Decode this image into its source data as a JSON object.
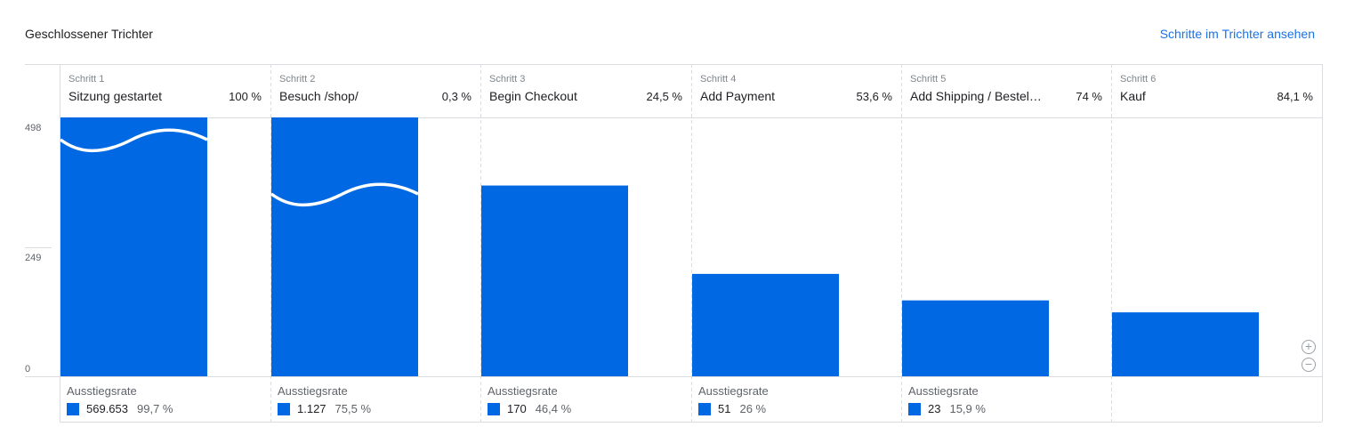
{
  "header": {
    "title": "Geschlossener Trichter",
    "link": "Schritte im Trichter ansehen"
  },
  "colors": {
    "bar": "#0068e2",
    "link": "#1a73e8"
  },
  "icons": {
    "zoom_in": "zoom-in-icon",
    "zoom_out": "zoom-out-icon"
  },
  "chart_data": {
    "type": "bar",
    "y_ticks": [
      "498",
      "249",
      "0"
    ],
    "ylim": [
      0,
      498
    ],
    "categories": [
      "Sitzung gestartet",
      "Besuch /shop/",
      "Begin Checkout",
      "Add Payment",
      "Add Shipping / Bestella…",
      "Kauf"
    ],
    "values": [
      498,
      498,
      367,
      197,
      146,
      123
    ],
    "axis_break_bars": [
      0,
      1
    ],
    "steps": [
      {
        "num": "Schritt 1",
        "label": "Sitzung gestartet",
        "pct": "100 %"
      },
      {
        "num": "Schritt 2",
        "label": "Besuch /shop/",
        "pct": "0,3 %"
      },
      {
        "num": "Schritt 3",
        "label": "Begin Checkout",
        "pct": "24,5 %"
      },
      {
        "num": "Schritt 4",
        "label": "Add Payment",
        "pct": "53,6 %"
      },
      {
        "num": "Schritt 5",
        "label": "Add Shipping / Bestella…",
        "pct": "74 %"
      },
      {
        "num": "Schritt 6",
        "label": "Kauf",
        "pct": "84,1 %"
      }
    ],
    "dropoff_label": "Ausstiegsrate",
    "dropoffs": [
      {
        "count": "569.653",
        "rate": "99,7 %"
      },
      {
        "count": "1.127",
        "rate": "75,5 %"
      },
      {
        "count": "170",
        "rate": "46,4 %"
      },
      {
        "count": "51",
        "rate": "26 %"
      },
      {
        "count": "23",
        "rate": "15,9 %"
      }
    ]
  }
}
